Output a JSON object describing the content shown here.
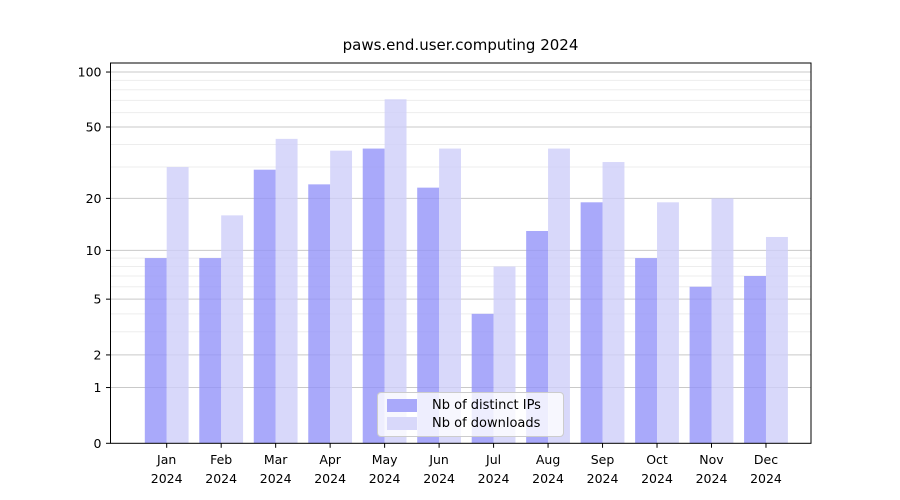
{
  "figure": {
    "title": "paws.end.user.computing 2024"
  },
  "chart_data": {
    "type": "bar",
    "title": "paws.end.user.computing 2024",
    "categories": [
      "Jan",
      "Feb",
      "Mar",
      "Apr",
      "May",
      "Jun",
      "Jul",
      "Aug",
      "Sep",
      "Oct",
      "Nov",
      "Dec"
    ],
    "x_sublabel": "2024",
    "series": [
      {
        "name": "Nb of distinct IPs",
        "color": "#a9a9fa",
        "values": [
          9,
          9,
          29,
          24,
          38,
          23,
          4,
          13,
          19,
          9,
          6,
          7
        ]
      },
      {
        "name": "Nb of downloads",
        "color": "#d8d8fa",
        "values": [
          30,
          16,
          43,
          37,
          71,
          38,
          8,
          38,
          32,
          19,
          20,
          12
        ]
      }
    ],
    "yscale": "log1p",
    "ylim": [
      0,
      112
    ],
    "yticks": [
      0,
      1,
      2,
      5,
      10,
      20,
      50,
      100
    ],
    "yticks_minor": [
      3,
      4,
      6,
      7,
      8,
      9,
      30,
      40,
      60,
      70,
      80,
      90
    ],
    "grid": true,
    "legend_position": "lower center"
  },
  "colors": {
    "grid_major": "#c9c9c9",
    "grid_minor": "#ededed",
    "axis": "#000000",
    "background": "#ffffff"
  }
}
